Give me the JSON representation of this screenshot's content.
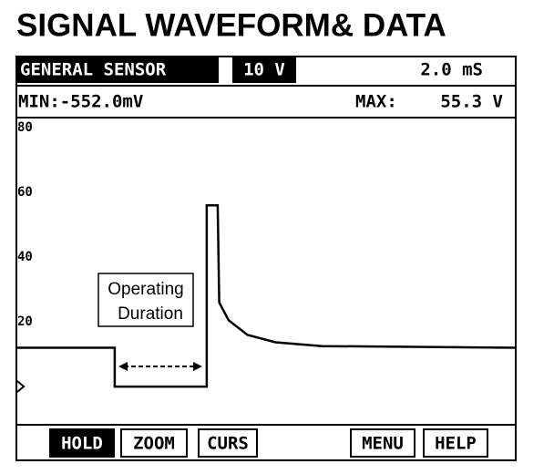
{
  "title": "SIGNAL WAVEFORM& DATA",
  "status_bar": {
    "sensor": "GENERAL SENSOR",
    "volts_per_div": "10 V",
    "time_per_div": "2.0 mS"
  },
  "readout": {
    "min": "MIN:-552.0mV",
    "max_label": "MAX:",
    "max_value": "55.3 V"
  },
  "buttons": [
    "HOLD",
    "ZOOM",
    "CURS",
    "MENU",
    "HELP"
  ],
  "chart_data": {
    "type": "line",
    "annotation": [
      "Operating",
      "Duration"
    ],
    "x": [
      0,
      3.15,
      3.15,
      6.1,
      6.1,
      6.45,
      6.5,
      6.8,
      7.4,
      8.3,
      9.8,
      16
    ],
    "values": [
      12,
      12,
      0,
      0,
      56,
      56,
      26,
      20.5,
      16,
      13.7,
      12.5,
      12
    ],
    "color": "#000000",
    "xlim": [
      0,
      16
    ],
    "ylim": [
      -11.5,
      82.8
    ],
    "yticks": [
      20,
      40,
      60,
      80
    ]
  }
}
